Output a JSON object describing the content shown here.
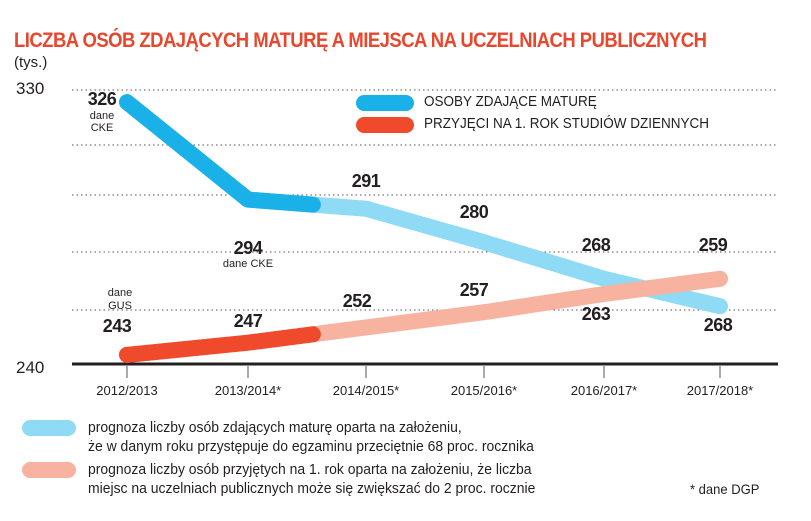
{
  "chart_data": {
    "type": "line",
    "title": "LICZBA OSÓB ZDAJĄCYCH MATURĘ A MIEJSCA NA UCZELNIACH PUBLICZNYCH",
    "ylabel": "(tys.)",
    "ylim": [
      240,
      330
    ],
    "ytick_labels": [
      "330",
      "240"
    ],
    "grid": true,
    "legend_position": "top-right",
    "categories": [
      "2012/2013",
      "2013/2014*",
      "2014/2015*",
      "2015/2016*",
      "2016/2017*",
      "2017/2018*"
    ],
    "series": [
      {
        "name": "OSOBY ZDAJĄCE MATURĘ",
        "color": "#1ab0e8",
        "forecast_color": "#8fdaf5",
        "values": [
          326,
          294,
          291,
          280,
          268,
          259
        ]
      },
      {
        "name": "PRZYJĘCI NA 1. ROK STUDIÓW DZIENNYCH",
        "color": "#f04a2c",
        "forecast_color": "#f7b3a0",
        "values": [
          243,
          247,
          252,
          257,
          263,
          268
        ]
      }
    ],
    "annotations": {
      "cke_first": "dane CKE",
      "cke_second": "dane CKE",
      "gus": "dane GUS"
    }
  },
  "footnotes": {
    "blue_forecast": [
      "prognoza liczby osób zdających maturę oparta na założeniu,",
      "że w danym roku przystępuje do egzaminu przeciętnie 68 proc. rocznika"
    ],
    "red_forecast": [
      "prognoza liczby osób przyjętych na 1. rok oparta na założeniu, że liczba",
      "miejsc na uczelniach publicznych może się zwiększać do 2 proc. rocznie"
    ],
    "source": "* dane DGP"
  }
}
